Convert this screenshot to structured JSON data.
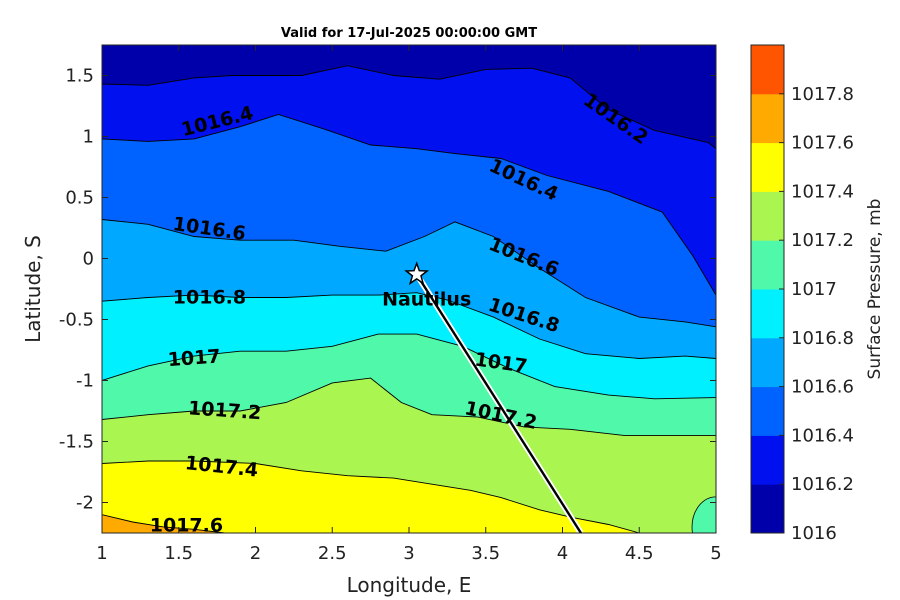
{
  "chart_data": {
    "type": "contour",
    "title": "Valid for 17-Jul-2025 00:00:00 GMT",
    "xlabel": "Longitude, E",
    "ylabel": "Latitude, S",
    "xlim": [
      1,
      5
    ],
    "ylim": [
      -2.25,
      1.75
    ],
    "xticks": [
      1,
      1.5,
      2,
      2.5,
      3,
      3.5,
      4,
      4.5,
      5
    ],
    "xtick_labels": [
      "1",
      "1.5",
      "2",
      "2.5",
      "3",
      "3.5",
      "4",
      "4.5",
      "5"
    ],
    "yticks": [
      1.5,
      1,
      0.5,
      0,
      -0.5,
      -1,
      -1.5,
      -2
    ],
    "ytick_labels": [
      "1.5",
      "1",
      "0.5",
      "0",
      "-0.5",
      "-1",
      "-1.5",
      "-2"
    ],
    "colorbar": {
      "label": "Surface Pressure, mb",
      "levels": [
        1016,
        1016.2,
        1016.4,
        1016.6,
        1016.8,
        1017,
        1017.2,
        1017.4,
        1017.6,
        1017.8
      ],
      "level_labels": [
        "1016",
        "1016.2",
        "1016.4",
        "1016.6",
        "1016.8",
        "1017",
        "1017.2",
        "1017.4",
        "1017.6",
        "1017.8"
      ],
      "colors": [
        "#0000aa",
        "#0010ee",
        "#0062ff",
        "#00a8ff",
        "#00f0ff",
        "#50f8aa",
        "#aaf550",
        "#ffff00",
        "#ffaa00",
        "#ff5500"
      ]
    },
    "contour_lines": [
      {
        "level": 1016.2,
        "points": [
          [
            1.0,
            1.43
          ],
          [
            1.3,
            1.42
          ],
          [
            1.6,
            1.48
          ],
          [
            1.85,
            1.5
          ],
          [
            2.3,
            1.5
          ],
          [
            2.6,
            1.58
          ],
          [
            2.9,
            1.5
          ],
          [
            3.2,
            1.47
          ],
          [
            3.5,
            1.55
          ],
          [
            3.8,
            1.56
          ],
          [
            4.05,
            1.48
          ],
          [
            4.3,
            1.22
          ],
          [
            4.6,
            1.05
          ],
          [
            4.95,
            0.95
          ],
          [
            5.0,
            0.9
          ]
        ]
      },
      {
        "level": 1016.4,
        "points": [
          [
            1.0,
            0.98
          ],
          [
            1.3,
            0.96
          ],
          [
            1.6,
            0.98
          ],
          [
            1.9,
            1.08
          ],
          [
            2.15,
            1.18
          ],
          [
            2.45,
            1.06
          ],
          [
            2.75,
            0.93
          ],
          [
            3.05,
            0.9
          ],
          [
            3.3,
            0.86
          ],
          [
            3.6,
            0.82
          ],
          [
            3.9,
            0.68
          ],
          [
            4.3,
            0.55
          ],
          [
            4.65,
            0.38
          ],
          [
            4.85,
            0.02
          ],
          [
            5.0,
            -0.3
          ]
        ]
      },
      {
        "level": 1016.6,
        "points": [
          [
            1.0,
            0.32
          ],
          [
            1.3,
            0.28
          ],
          [
            1.6,
            0.18
          ],
          [
            1.9,
            0.15
          ],
          [
            2.25,
            0.15
          ],
          [
            2.55,
            0.1
          ],
          [
            2.85,
            0.06
          ],
          [
            3.1,
            0.18
          ],
          [
            3.3,
            0.3
          ],
          [
            3.55,
            0.18
          ],
          [
            3.85,
            -0.08
          ],
          [
            4.15,
            -0.32
          ],
          [
            4.5,
            -0.48
          ],
          [
            4.8,
            -0.52
          ],
          [
            5.0,
            -0.56
          ]
        ]
      },
      {
        "level": 1016.8,
        "points": [
          [
            1.0,
            -0.35
          ],
          [
            1.3,
            -0.32
          ],
          [
            1.6,
            -0.3
          ],
          [
            1.9,
            -0.32
          ],
          [
            2.2,
            -0.32
          ],
          [
            2.5,
            -0.3
          ],
          [
            2.8,
            -0.3
          ],
          [
            3.05,
            -0.28
          ],
          [
            3.25,
            -0.34
          ],
          [
            3.55,
            -0.48
          ],
          [
            3.85,
            -0.66
          ],
          [
            4.15,
            -0.78
          ],
          [
            4.5,
            -0.82
          ],
          [
            4.8,
            -0.8
          ],
          [
            5.0,
            -0.82
          ]
        ]
      },
      {
        "level": 1017,
        "points": [
          [
            1.0,
            -1.0
          ],
          [
            1.3,
            -0.88
          ],
          [
            1.6,
            -0.8
          ],
          [
            1.9,
            -0.76
          ],
          [
            2.2,
            -0.76
          ],
          [
            2.5,
            -0.72
          ],
          [
            2.8,
            -0.62
          ],
          [
            3.05,
            -0.62
          ],
          [
            3.35,
            -0.72
          ],
          [
            3.65,
            -0.9
          ],
          [
            3.95,
            -1.05
          ],
          [
            4.3,
            -1.12
          ],
          [
            4.6,
            -1.15
          ],
          [
            5.0,
            -1.14
          ]
        ]
      },
      {
        "level": 1017.2,
        "points": [
          [
            1.0,
            -1.32
          ],
          [
            1.3,
            -1.28
          ],
          [
            1.6,
            -1.25
          ],
          [
            1.9,
            -1.25
          ],
          [
            2.2,
            -1.18
          ],
          [
            2.5,
            -1.02
          ],
          [
            2.75,
            -0.98
          ],
          [
            2.95,
            -1.18
          ],
          [
            3.15,
            -1.28
          ],
          [
            3.45,
            -1.3
          ],
          [
            3.75,
            -1.38
          ],
          [
            4.05,
            -1.4
          ],
          [
            4.4,
            -1.45
          ],
          [
            5.0,
            -1.45
          ]
        ]
      },
      {
        "level": 1017.4,
        "points": [
          [
            1.0,
            -1.68
          ],
          [
            1.3,
            -1.66
          ],
          [
            1.6,
            -1.66
          ],
          [
            2.0,
            -1.68
          ],
          [
            2.3,
            -1.74
          ],
          [
            2.6,
            -1.78
          ],
          [
            2.9,
            -1.8
          ],
          [
            3.2,
            -1.86
          ],
          [
            3.4,
            -1.9
          ],
          [
            3.6,
            -1.96
          ],
          [
            3.85,
            -2.06
          ],
          [
            4.05,
            -2.12
          ],
          [
            4.3,
            -2.18
          ],
          [
            4.5,
            -2.25
          ]
        ]
      },
      {
        "level": 1017.6,
        "points": [
          [
            1.0,
            -2.1
          ],
          [
            1.2,
            -2.16
          ],
          [
            1.4,
            -2.2
          ],
          [
            1.6,
            -2.22
          ],
          [
            1.8,
            -2.25
          ]
        ]
      }
    ],
    "contour_labels": [
      {
        "text": "1016.4",
        "x": 1.75,
        "y": 1.13,
        "rotate": -14
      },
      {
        "text": "1016.6",
        "x": 1.7,
        "y": 0.25,
        "rotate": 8
      },
      {
        "text": "1016.8",
        "x": 1.7,
        "y": -0.31,
        "rotate": 0
      },
      {
        "text": "1017",
        "x": 1.6,
        "y": -0.81,
        "rotate": -4
      },
      {
        "text": "1017.2",
        "x": 1.8,
        "y": -1.24,
        "rotate": 4
      },
      {
        "text": "1017.4",
        "x": 1.78,
        "y": -1.7,
        "rotate": 6
      },
      {
        "text": "1017.6",
        "x": 1.55,
        "y": -2.18,
        "rotate": 0
      },
      {
        "text": "1016.2",
        "x": 4.35,
        "y": 1.15,
        "rotate": 35
      },
      {
        "text": "1016.4",
        "x": 3.75,
        "y": 0.65,
        "rotate": 25
      },
      {
        "text": "1016.6",
        "x": 3.75,
        "y": 0.02,
        "rotate": 22
      },
      {
        "text": "1016.8",
        "x": 3.75,
        "y": -0.46,
        "rotate": 18
      },
      {
        "text": "1017",
        "x": 3.6,
        "y": -0.85,
        "rotate": 8
      },
      {
        "text": "1017.2",
        "x": 3.6,
        "y": -1.28,
        "rotate": 12
      }
    ],
    "marker": {
      "name": "Nautilus",
      "x": 3.05,
      "y": -0.13
    },
    "track": [
      [
        3.05,
        -0.13
      ],
      [
        4.12,
        -2.25
      ]
    ]
  }
}
